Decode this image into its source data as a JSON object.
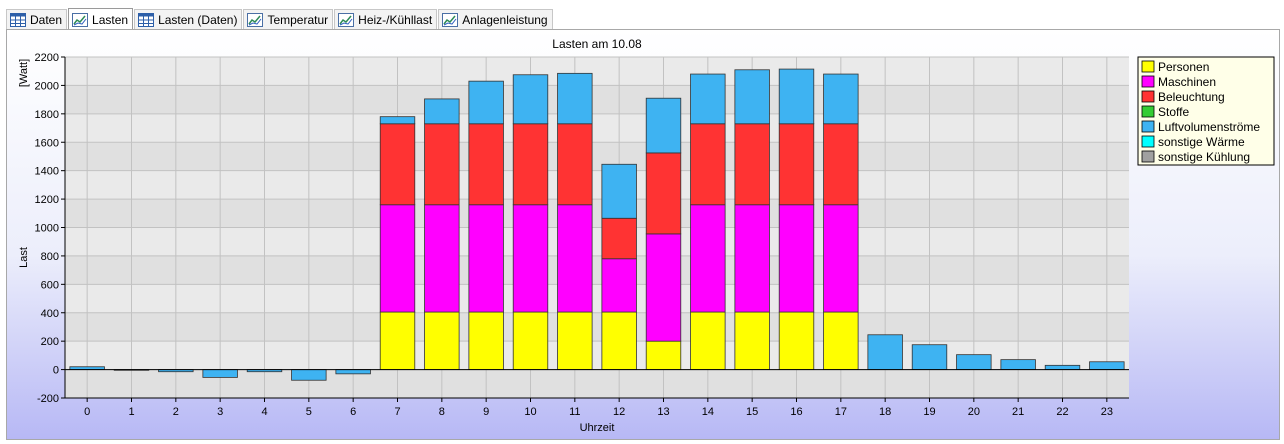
{
  "tabs": [
    {
      "label": "Daten",
      "icon": "table-icon",
      "active": false
    },
    {
      "label": "Lasten",
      "icon": "chart-icon",
      "active": true
    },
    {
      "label": "Lasten (Daten)",
      "icon": "table-icon",
      "active": false
    },
    {
      "label": "Temperatur",
      "icon": "chart-icon",
      "active": false
    },
    {
      "label": "Heiz-/Kühllast",
      "icon": "chart-icon",
      "active": false
    },
    {
      "label": "Anlagenleistung",
      "icon": "chart-icon",
      "active": false
    }
  ],
  "chart_data": {
    "type": "bar",
    "stacked": true,
    "title": "Lasten am 10.08",
    "xlabel": "Uhrzeit",
    "ylabel": "Last",
    "yunit": "[Watt]",
    "ylim": [
      -200,
      2200
    ],
    "ytick_step": 200,
    "grid": true,
    "legend_position": "right",
    "categories": [
      "0",
      "1",
      "2",
      "3",
      "4",
      "5",
      "6",
      "7",
      "8",
      "9",
      "10",
      "11",
      "12",
      "13",
      "14",
      "15",
      "16",
      "17",
      "18",
      "19",
      "20",
      "21",
      "22",
      "23"
    ],
    "series": [
      {
        "name": "Personen",
        "color": "#ffff00",
        "values": [
          0,
          0,
          0,
          0,
          0,
          0,
          0,
          405,
          405,
          405,
          405,
          405,
          405,
          200,
          405,
          405,
          405,
          405,
          0,
          0,
          0,
          0,
          0,
          0
        ]
      },
      {
        "name": "Maschinen",
        "color": "#ff00ff",
        "values": [
          0,
          0,
          0,
          0,
          0,
          0,
          0,
          755,
          755,
          755,
          755,
          755,
          375,
          755,
          755,
          755,
          755,
          755,
          0,
          0,
          0,
          0,
          0,
          0
        ]
      },
      {
        "name": "Beleuchtung",
        "color": "#ff3333",
        "values": [
          0,
          0,
          0,
          0,
          0,
          0,
          0,
          570,
          570,
          570,
          570,
          570,
          285,
          570,
          570,
          570,
          570,
          570,
          0,
          0,
          0,
          0,
          0,
          0
        ]
      },
      {
        "name": "Stoffe",
        "color": "#33cc33",
        "values": [
          0,
          0,
          0,
          0,
          0,
          0,
          0,
          0,
          0,
          0,
          0,
          0,
          0,
          0,
          0,
          0,
          0,
          0,
          0,
          0,
          0,
          0,
          0,
          0
        ]
      },
      {
        "name": "Luftvolumenströme",
        "color": "#3eb3f2",
        "values": [
          20,
          -5,
          -15,
          -55,
          -15,
          -75,
          -30,
          50,
          175,
          300,
          345,
          355,
          380,
          385,
          350,
          380,
          385,
          350,
          245,
          175,
          105,
          70,
          30,
          55
        ]
      },
      {
        "name": "sonstige Wärme",
        "color": "#00ffff",
        "values": [
          0,
          0,
          0,
          0,
          0,
          0,
          0,
          0,
          0,
          0,
          0,
          0,
          0,
          0,
          0,
          0,
          0,
          0,
          0,
          0,
          0,
          0,
          0,
          0
        ]
      },
      {
        "name": "sonstige Kühlung",
        "color": "#a0a0a0",
        "values": [
          0,
          0,
          0,
          0,
          0,
          0,
          0,
          0,
          0,
          0,
          0,
          0,
          0,
          0,
          0,
          0,
          0,
          0,
          0,
          0,
          0,
          0,
          0,
          0
        ]
      }
    ]
  }
}
